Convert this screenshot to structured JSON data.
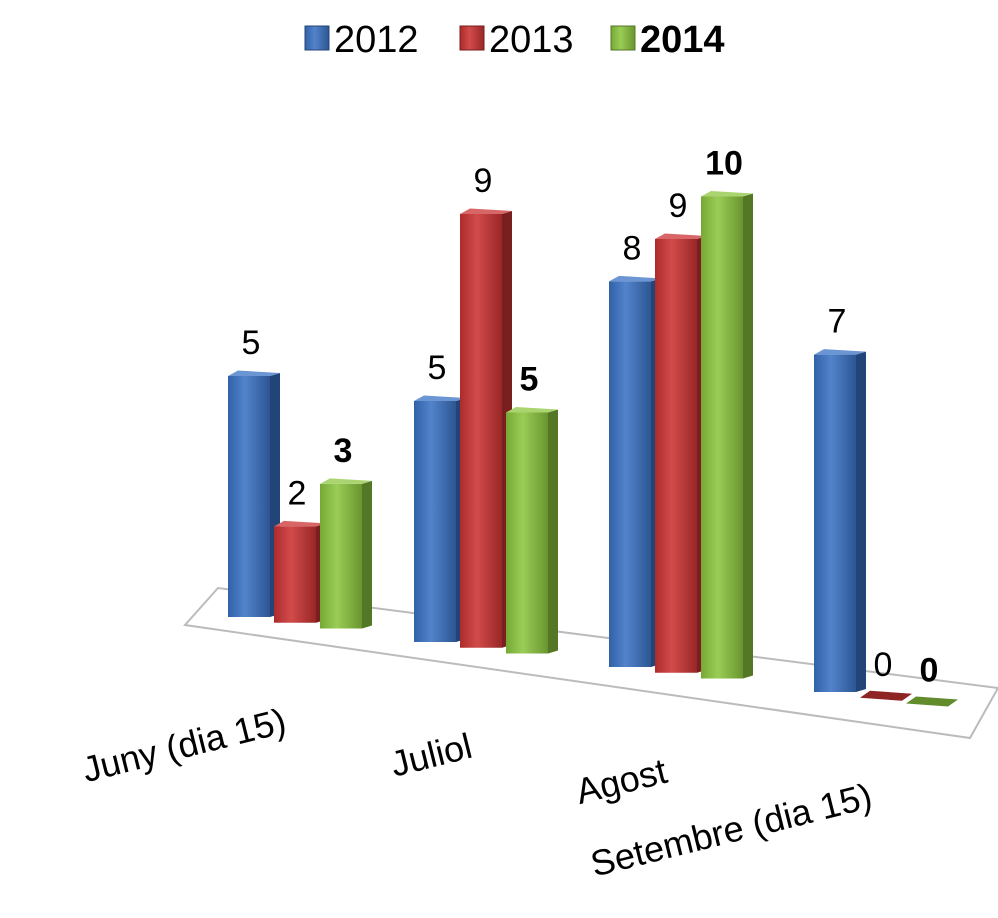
{
  "chart_data": {
    "type": "bar",
    "title": "",
    "xlabel": "",
    "ylabel": "",
    "ylim": [
      0,
      10
    ],
    "grid": false,
    "legend_position": "top",
    "categories": [
      "Juny (dia 15)",
      "Juliol",
      "Agost",
      "Setembre (dia 15)"
    ],
    "series": [
      {
        "name": "2012",
        "values": [
          5,
          5,
          8,
          7
        ],
        "color": "#3a72c4",
        "bold": false
      },
      {
        "name": "2013",
        "values": [
          2,
          9,
          9,
          0
        ],
        "color": "#cc3333",
        "bold": false
      },
      {
        "name": "2014",
        "values": [
          3,
          5,
          10,
          0
        ],
        "color": "#8cc63f",
        "bold": true
      }
    ]
  }
}
